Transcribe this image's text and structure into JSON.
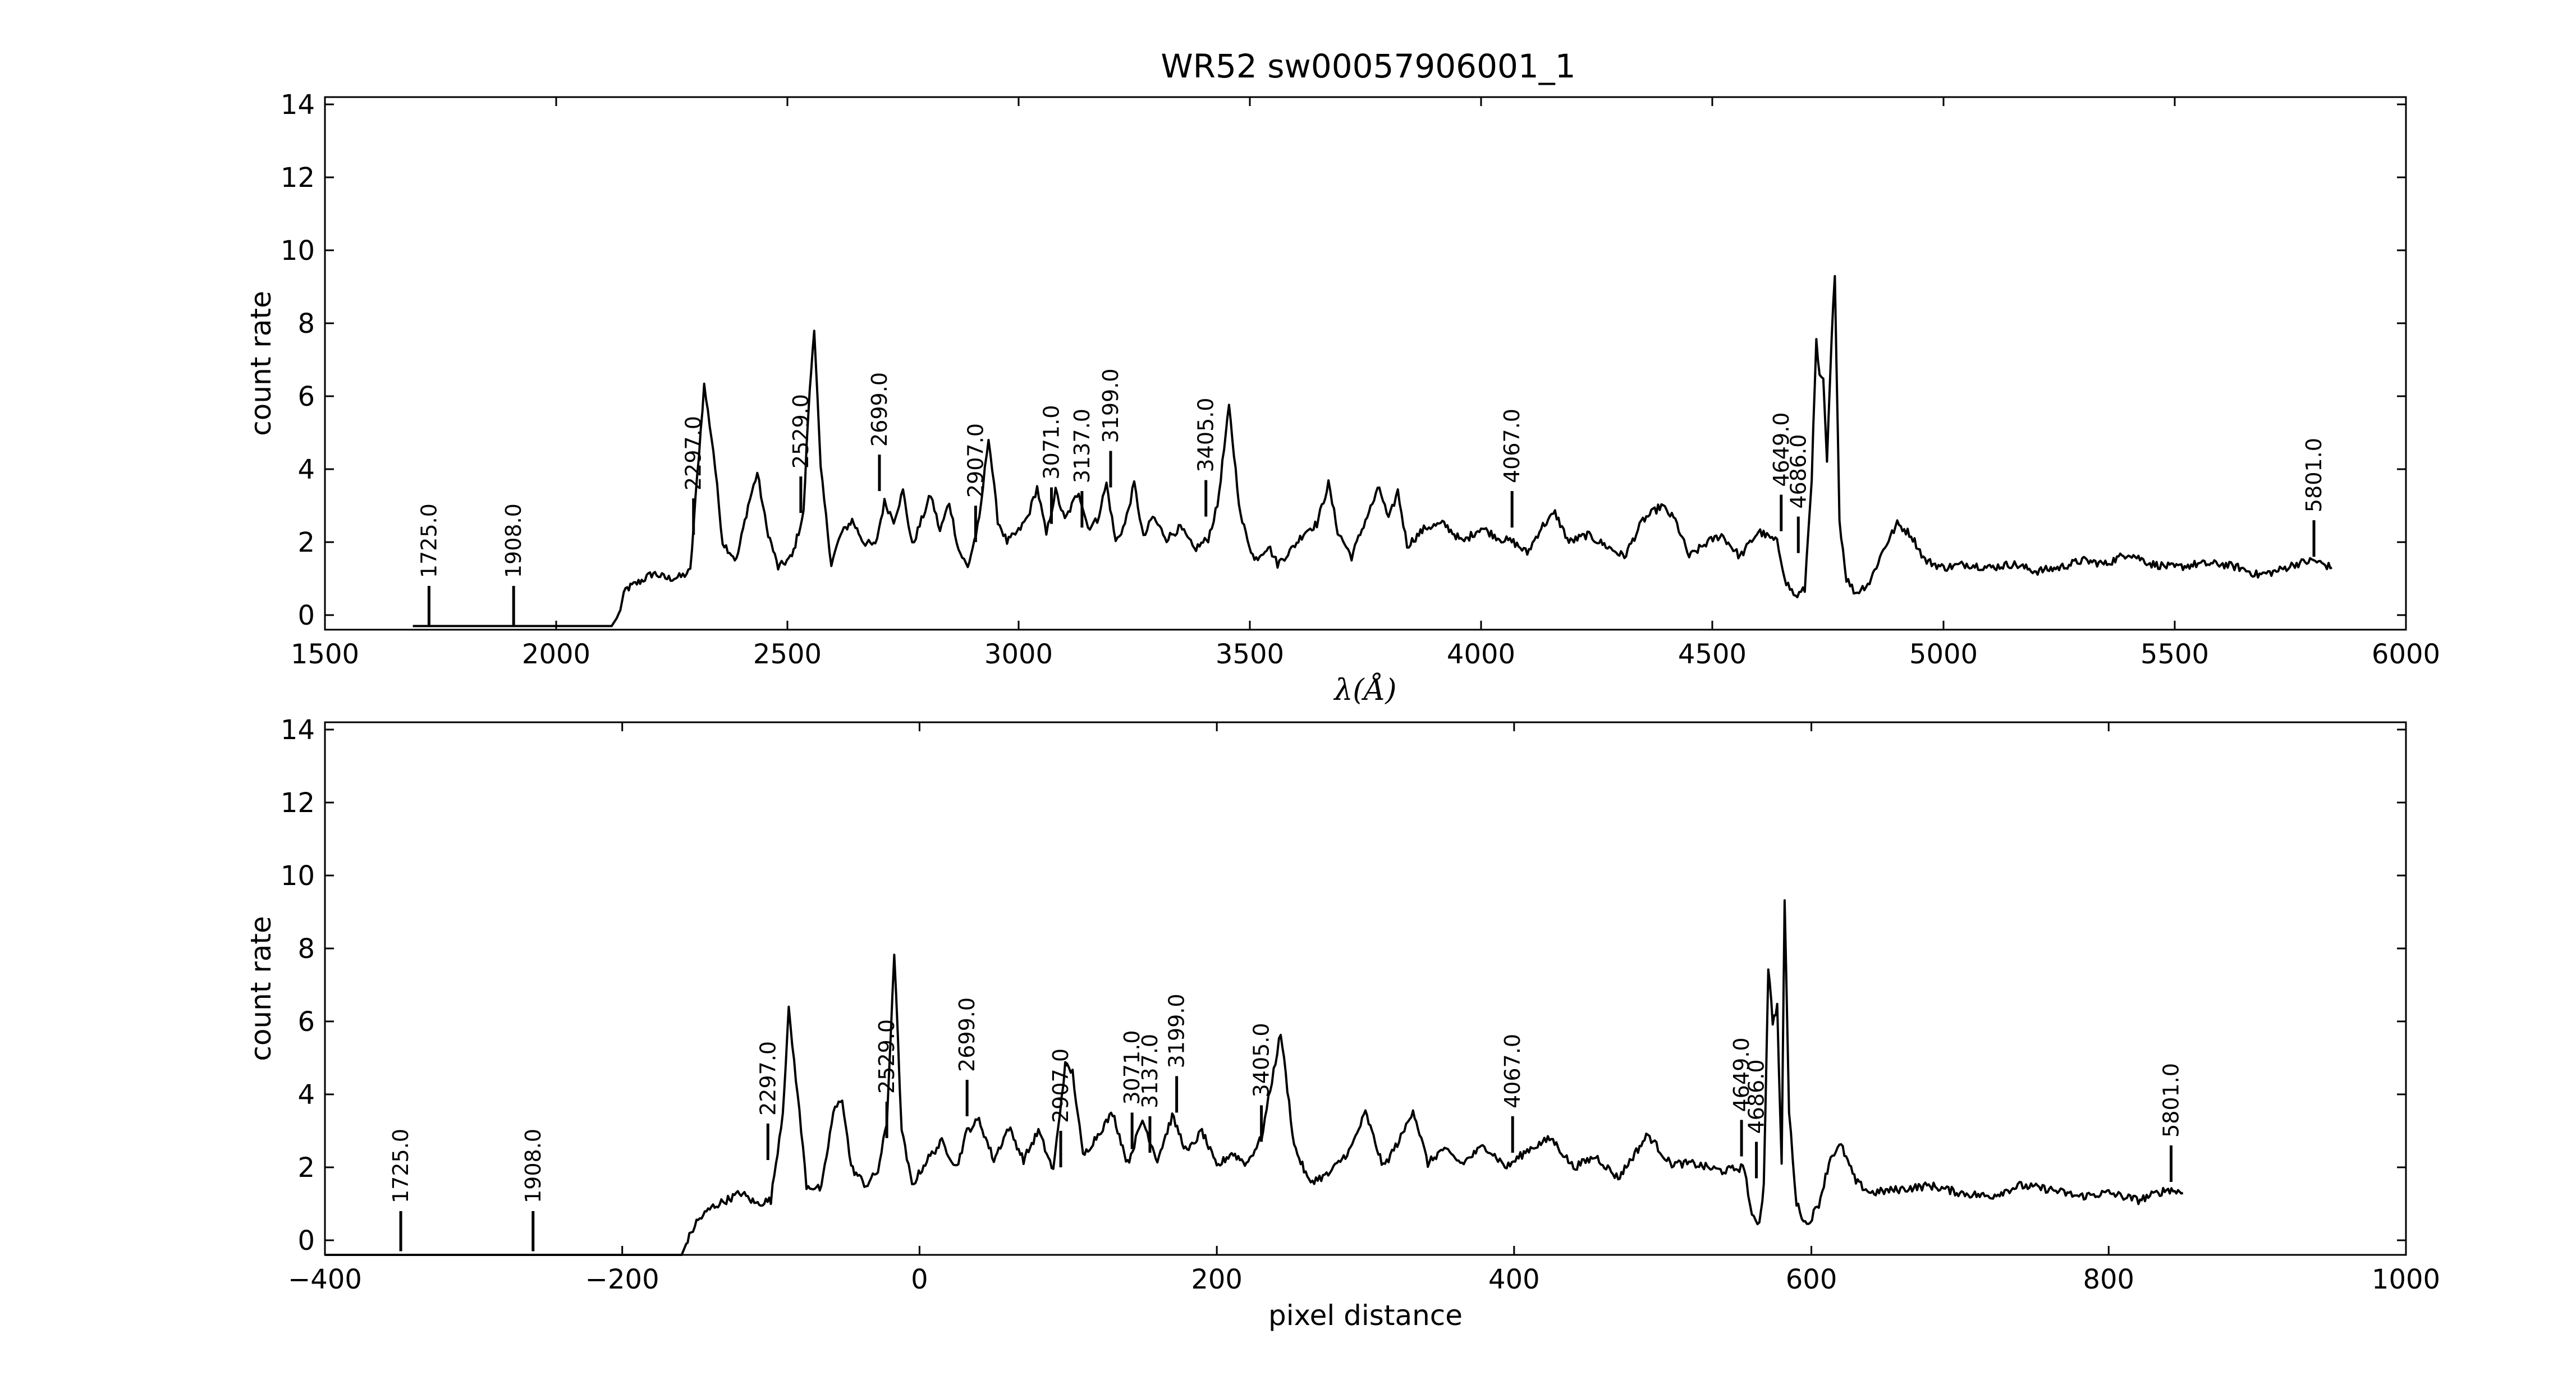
{
  "figure": {
    "title": "WR52  sw00057906001_1"
  },
  "line_ids": [
    "1725.0",
    "1908.0",
    "2297.0",
    "2529.0",
    "2699.0",
    "2907.0",
    "3071.0",
    "3137.0",
    "3199.0",
    "3405.0",
    "4067.0",
    "4649.0",
    "4686.0",
    "5801.0"
  ],
  "chart_data": [
    {
      "type": "line",
      "xlabel": "λ(Å)",
      "ylabel": "count rate",
      "xlim": [
        1500,
        6000
      ],
      "ylim": [
        -0.4,
        14.2
      ],
      "xticks": [
        1500,
        2000,
        2500,
        3000,
        3500,
        4000,
        4500,
        5000,
        5500,
        6000
      ],
      "yticks": [
        0,
        2,
        4,
        6,
        8,
        10,
        12,
        14
      ],
      "grid": false,
      "series_key": [
        [
          1690,
          -0.3
        ],
        [
          2120,
          -0.3
        ],
        [
          2135,
          0.0
        ],
        [
          2150,
          0.7
        ],
        [
          2185,
          0.95
        ],
        [
          2210,
          1.15
        ],
        [
          2240,
          1.0
        ],
        [
          2270,
          1.05
        ],
        [
          2290,
          1.2
        ],
        [
          2305,
          3.8
        ],
        [
          2320,
          6.3
        ],
        [
          2340,
          4.5
        ],
        [
          2360,
          2.0
        ],
        [
          2390,
          1.5
        ],
        [
          2415,
          3.0
        ],
        [
          2435,
          3.9
        ],
        [
          2455,
          2.4
        ],
        [
          2480,
          1.3
        ],
        [
          2510,
          1.6
        ],
        [
          2535,
          2.8
        ],
        [
          2545,
          5.5
        ],
        [
          2558,
          7.9
        ],
        [
          2572,
          4.0
        ],
        [
          2595,
          1.4
        ],
        [
          2615,
          2.2
        ],
        [
          2640,
          2.6
        ],
        [
          2665,
          2.0
        ],
        [
          2690,
          1.9
        ],
        [
          2710,
          3.1
        ],
        [
          2730,
          2.6
        ],
        [
          2750,
          3.4
        ],
        [
          2770,
          1.9
        ],
        [
          2790,
          2.6
        ],
        [
          2810,
          3.3
        ],
        [
          2830,
          2.3
        ],
        [
          2850,
          3.1
        ],
        [
          2870,
          1.8
        ],
        [
          2890,
          1.3
        ],
        [
          2915,
          2.6
        ],
        [
          2935,
          4.9
        ],
        [
          2955,
          2.6
        ],
        [
          2975,
          2.0
        ],
        [
          3000,
          2.3
        ],
        [
          3020,
          2.7
        ],
        [
          3040,
          3.5
        ],
        [
          3060,
          2.2
        ],
        [
          3080,
          3.4
        ],
        [
          3100,
          2.6
        ],
        [
          3130,
          3.4
        ],
        [
          3150,
          2.4
        ],
        [
          3170,
          2.6
        ],
        [
          3190,
          3.6
        ],
        [
          3210,
          2.0
        ],
        [
          3230,
          2.5
        ],
        [
          3250,
          3.6
        ],
        [
          3270,
          2.1
        ],
        [
          3290,
          2.7
        ],
        [
          3320,
          2.1
        ],
        [
          3350,
          2.4
        ],
        [
          3380,
          1.8
        ],
        [
          3410,
          2.1
        ],
        [
          3430,
          3.0
        ],
        [
          3455,
          5.7
        ],
        [
          3480,
          2.7
        ],
        [
          3510,
          1.5
        ],
        [
          3540,
          1.9
        ],
        [
          3560,
          1.4
        ],
        [
          3590,
          1.8
        ],
        [
          3620,
          2.3
        ],
        [
          3645,
          2.5
        ],
        [
          3670,
          3.6
        ],
        [
          3690,
          2.3
        ],
        [
          3720,
          1.6
        ],
        [
          3750,
          2.6
        ],
        [
          3780,
          3.5
        ],
        [
          3800,
          2.6
        ],
        [
          3820,
          3.4
        ],
        [
          3840,
          1.9
        ],
        [
          3880,
          2.4
        ],
        [
          3920,
          2.5
        ],
        [
          3960,
          2.0
        ],
        [
          4000,
          2.4
        ],
        [
          4040,
          2.1
        ],
        [
          4070,
          2.0
        ],
        [
          4100,
          1.7
        ],
        [
          4130,
          2.4
        ],
        [
          4160,
          2.8
        ],
        [
          4190,
          2.0
        ],
        [
          4230,
          2.2
        ],
        [
          4270,
          1.9
        ],
        [
          4310,
          1.6
        ],
        [
          4350,
          2.6
        ],
        [
          4390,
          3.0
        ],
        [
          4420,
          2.6
        ],
        [
          4450,
          1.6
        ],
        [
          4490,
          2.0
        ],
        [
          4520,
          2.2
        ],
        [
          4560,
          1.6
        ],
        [
          4600,
          2.3
        ],
        [
          4640,
          2.0
        ],
        [
          4660,
          0.9
        ],
        [
          4680,
          0.5
        ],
        [
          4700,
          0.7
        ],
        [
          4715,
          3.8
        ],
        [
          4725,
          7.5
        ],
        [
          4732,
          6.5
        ],
        [
          4740,
          6.4
        ],
        [
          4748,
          4.2
        ],
        [
          4758,
          7.5
        ],
        [
          4765,
          9.4
        ],
        [
          4775,
          2.6
        ],
        [
          4790,
          1.0
        ],
        [
          4810,
          0.6
        ],
        [
          4840,
          0.9
        ],
        [
          4870,
          1.8
        ],
        [
          4900,
          2.5
        ],
        [
          4930,
          2.2
        ],
        [
          4960,
          1.5
        ],
        [
          5000,
          1.3
        ],
        [
          5050,
          1.4
        ],
        [
          5100,
          1.3
        ],
        [
          5150,
          1.4
        ],
        [
          5200,
          1.2
        ],
        [
          5250,
          1.3
        ],
        [
          5300,
          1.5
        ],
        [
          5350,
          1.4
        ],
        [
          5400,
          1.7
        ],
        [
          5450,
          1.4
        ],
        [
          5500,
          1.3
        ],
        [
          5550,
          1.4
        ],
        [
          5600,
          1.4
        ],
        [
          5640,
          1.3
        ],
        [
          5680,
          1.1
        ],
        [
          5720,
          1.2
        ],
        [
          5760,
          1.4
        ],
        [
          5800,
          1.5
        ],
        [
          5840,
          1.3
        ]
      ],
      "markers": [
        {
          "x": 1725,
          "y0": -0.3,
          "y1": 0.8
        },
        {
          "x": 1908,
          "y0": -0.3,
          "y1": 0.8
        },
        {
          "x": 2297,
          "y0": 2.2,
          "y1": 3.2
        },
        {
          "x": 2529,
          "y0": 2.8,
          "y1": 3.8
        },
        {
          "x": 2699,
          "y0": 3.4,
          "y1": 4.4
        },
        {
          "x": 2907,
          "y0": 2.0,
          "y1": 3.0
        },
        {
          "x": 3071,
          "y0": 2.5,
          "y1": 3.5
        },
        {
          "x": 3137,
          "y0": 2.4,
          "y1": 3.4
        },
        {
          "x": 3199,
          "y0": 3.5,
          "y1": 4.5
        },
        {
          "x": 3405,
          "y0": 2.7,
          "y1": 3.7
        },
        {
          "x": 4067,
          "y0": 2.4,
          "y1": 3.4
        },
        {
          "x": 4649,
          "y0": 2.3,
          "y1": 3.3
        },
        {
          "x": 4686,
          "y0": 1.7,
          "y1": 2.7
        },
        {
          "x": 5801,
          "y0": 1.6,
          "y1": 2.6
        }
      ]
    },
    {
      "type": "line",
      "xlabel": "pixel distance",
      "ylabel": "count rate",
      "xlim": [
        -400,
        1000
      ],
      "ylim": [
        -0.4,
        14.2
      ],
      "xticks": [
        -400,
        -200,
        0,
        200,
        400,
        600,
        800,
        1000
      ],
      "yticks": [
        0,
        2,
        4,
        6,
        8,
        10,
        12,
        14
      ],
      "grid": false,
      "series_key": [
        [
          -400,
          -0.4
        ],
        [
          -160,
          -0.4
        ],
        [
          -156,
          0.0
        ],
        [
          -150,
          0.5
        ],
        [
          -140,
          0.9
        ],
        [
          -130,
          1.1
        ],
        [
          -120,
          1.3
        ],
        [
          -110,
          1.0
        ],
        [
          -100,
          1.1
        ],
        [
          -92,
          3.5
        ],
        [
          -88,
          6.3
        ],
        [
          -82,
          4.0
        ],
        [
          -76,
          1.5
        ],
        [
          -66,
          1.4
        ],
        [
          -58,
          3.5
        ],
        [
          -52,
          3.9
        ],
        [
          -46,
          2.0
        ],
        [
          -36,
          1.5
        ],
        [
          -28,
          1.9
        ],
        [
          -22,
          3.2
        ],
        [
          -17,
          7.9
        ],
        [
          -12,
          3.0
        ],
        [
          -5,
          1.5
        ],
        [
          5,
          2.2
        ],
        [
          15,
          2.7
        ],
        [
          25,
          2.0
        ],
        [
          32,
          3.0
        ],
        [
          40,
          3.3
        ],
        [
          50,
          2.2
        ],
        [
          60,
          3.1
        ],
        [
          70,
          2.2
        ],
        [
          80,
          3.0
        ],
        [
          90,
          1.9
        ],
        [
          98,
          4.8
        ],
        [
          103,
          4.6
        ],
        [
          110,
          2.3
        ],
        [
          120,
          2.9
        ],
        [
          130,
          3.5
        ],
        [
          140,
          2.1
        ],
        [
          150,
          3.3
        ],
        [
          160,
          2.2
        ],
        [
          170,
          3.4
        ],
        [
          180,
          2.4
        ],
        [
          190,
          3.0
        ],
        [
          200,
          2.0
        ],
        [
          210,
          2.4
        ],
        [
          220,
          2.1
        ],
        [
          230,
          2.8
        ],
        [
          243,
          5.7
        ],
        [
          252,
          2.6
        ],
        [
          262,
          1.6
        ],
        [
          275,
          1.8
        ],
        [
          290,
          2.5
        ],
        [
          300,
          3.5
        ],
        [
          312,
          2.0
        ],
        [
          325,
          2.9
        ],
        [
          332,
          3.6
        ],
        [
          342,
          2.1
        ],
        [
          352,
          2.5
        ],
        [
          365,
          2.1
        ],
        [
          380,
          2.6
        ],
        [
          395,
          2.0
        ],
        [
          410,
          2.5
        ],
        [
          425,
          2.8
        ],
        [
          440,
          2.0
        ],
        [
          455,
          2.3
        ],
        [
          470,
          1.7
        ],
        [
          490,
          2.9
        ],
        [
          505,
          2.1
        ],
        [
          520,
          2.1
        ],
        [
          540,
          1.9
        ],
        [
          555,
          2.0
        ],
        [
          560,
          0.6
        ],
        [
          565,
          0.5
        ],
        [
          568,
          1.5
        ],
        [
          571,
          7.5
        ],
        [
          574,
          6.0
        ],
        [
          577,
          6.4
        ],
        [
          580,
          2.0
        ],
        [
          582,
          9.4
        ],
        [
          585,
          3.5
        ],
        [
          590,
          1.0
        ],
        [
          597,
          0.4
        ],
        [
          605,
          1.0
        ],
        [
          613,
          2.3
        ],
        [
          620,
          2.6
        ],
        [
          630,
          1.6
        ],
        [
          640,
          1.3
        ],
        [
          660,
          1.4
        ],
        [
          680,
          1.5
        ],
        [
          700,
          1.3
        ],
        [
          720,
          1.2
        ],
        [
          740,
          1.5
        ],
        [
          760,
          1.4
        ],
        [
          780,
          1.2
        ],
        [
          800,
          1.3
        ],
        [
          820,
          1.1
        ],
        [
          840,
          1.4
        ],
        [
          850,
          1.3
        ]
      ],
      "markers": [
        {
          "x": -349,
          "y0": -0.3,
          "y1": 0.8
        },
        {
          "x": -260,
          "y0": -0.3,
          "y1": 0.8
        },
        {
          "x": -102,
          "y0": 2.2,
          "y1": 3.2
        },
        {
          "x": -22,
          "y0": 2.8,
          "y1": 3.8
        },
        {
          "x": 32,
          "y0": 3.4,
          "y1": 4.4
        },
        {
          "x": 95,
          "y0": 2.0,
          "y1": 3.0
        },
        {
          "x": 143,
          "y0": 2.5,
          "y1": 3.5
        },
        {
          "x": 155,
          "y0": 2.4,
          "y1": 3.4
        },
        {
          "x": 173,
          "y0": 3.5,
          "y1": 4.5
        },
        {
          "x": 230,
          "y0": 2.7,
          "y1": 3.7
        },
        {
          "x": 399,
          "y0": 2.4,
          "y1": 3.4
        },
        {
          "x": 553,
          "y0": 2.3,
          "y1": 3.3
        },
        {
          "x": 563,
          "y0": 1.7,
          "y1": 2.7
        },
        {
          "x": 842,
          "y0": 1.6,
          "y1": 2.6
        }
      ]
    }
  ]
}
